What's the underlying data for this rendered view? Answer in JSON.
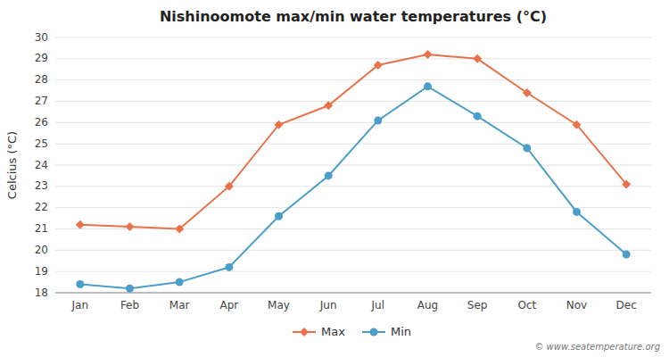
{
  "chart_data": {
    "type": "line",
    "title": "Nishinoomote max/min water temperatures (°C)",
    "ylabel": "Celcius (°C)",
    "categories": [
      "Jan",
      "Feb",
      "Mar",
      "Apr",
      "May",
      "Jun",
      "Jul",
      "Aug",
      "Sep",
      "Oct",
      "Nov",
      "Dec"
    ],
    "series": [
      {
        "name": "Max",
        "color": "#e8724a",
        "marker": "diamond",
        "values": [
          21.2,
          21.1,
          21.0,
          23.0,
          25.9,
          26.8,
          28.7,
          29.2,
          29.0,
          27.4,
          25.9,
          23.1
        ]
      },
      {
        "name": "Min",
        "color": "#4a9ec8",
        "marker": "circle",
        "values": [
          18.4,
          18.2,
          18.5,
          19.2,
          21.6,
          23.5,
          26.1,
          27.7,
          26.3,
          24.8,
          21.8,
          19.8
        ]
      }
    ],
    "ylim": [
      18,
      30
    ],
    "yticks": [
      18,
      19,
      20,
      21,
      22,
      23,
      24,
      25,
      26,
      27,
      28,
      29,
      30
    ],
    "grid": true,
    "legend": "bottom",
    "annotations": [
      "© www.seatemperature.org"
    ]
  }
}
